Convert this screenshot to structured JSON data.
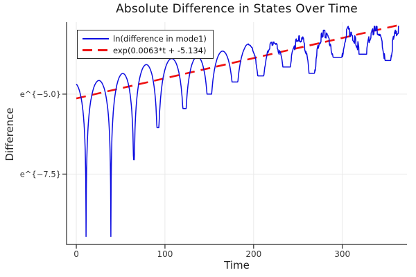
{
  "chart_data": {
    "type": "line",
    "title": "Absolute Difference in States Over Time",
    "xlabel": "Time",
    "ylabel": "Difference",
    "xlim": [
      -11,
      373
    ],
    "ylim": [
      -9.7,
      -2.75
    ],
    "grid": true,
    "legend_position": "top-left",
    "x_ticks": [
      {
        "label": "0",
        "value": 0
      },
      {
        "label": "100",
        "value": 100
      },
      {
        "label": "200",
        "value": 200
      },
      {
        "label": "300",
        "value": 300
      }
    ],
    "y_ticks": [
      {
        "label": "e^{−5.0}",
        "value": -5.0
      },
      {
        "label": "e^{−7.5}",
        "value": -7.5
      }
    ],
    "series": [
      {
        "name": "ln(difference in mode1)",
        "color": "#0d0de0",
        "style": "solid",
        "model": "log_abs_oscillation",
        "t_range": [
          0,
          364
        ],
        "trend": {
          "slope": 0.0063,
          "intercept": -5.134
        },
        "arch_bounds": [
          -16.5,
          11,
          39,
          65,
          92,
          122,
          150,
          179,
          208,
          237,
          265,
          295,
          323,
          351,
          379
        ],
        "arch_peak_offsets": [
          0.5,
          0.4,
          0.45,
          0.56,
          0.57,
          0.45,
          0.44,
          0.45,
          0.33,
          0.25,
          0.13,
          0.1,
          0.02,
          0.0
        ],
        "dip_values": [
          -9.45,
          -9.45,
          -7.05,
          -6.05,
          -5.45,
          -5.0,
          -4.62,
          -4.43,
          -4.15,
          -4.35,
          -3.85,
          -3.75,
          -3.95,
          -3.5
        ],
        "noise": {
          "onset_t": 190,
          "base": 0.02,
          "growth": 0.0033,
          "max": 0.22,
          "seed": 20240613
        }
      },
      {
        "name": "exp(0.0063*t + -5.134)",
        "color": "#ee1111",
        "style": "dashed",
        "model": "linear_in_log",
        "t_range": [
          0,
          365
        ],
        "trend": {
          "slope": 0.0063,
          "intercept": -5.134
        }
      }
    ],
    "axis_color": "#2a2a2a",
    "grid_color": "#e9e9e9",
    "tick_label_color": "#363636"
  }
}
